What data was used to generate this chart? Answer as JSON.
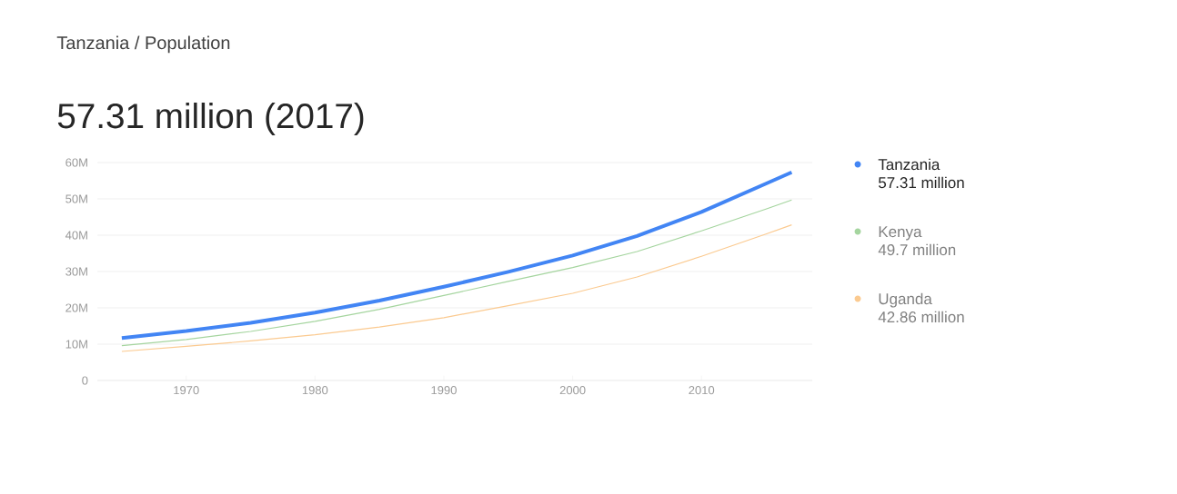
{
  "chart_data": {
    "type": "line",
    "title": "Tanzania / Population",
    "subtitle": "57.31 million (2017)",
    "x": [
      1965,
      1970,
      1975,
      1980,
      1985,
      1990,
      1995,
      2000,
      2005,
      2010,
      2015,
      2017
    ],
    "series": [
      {
        "name": "Tanzania",
        "color": "#4285f4",
        "values": [
          11.7,
          13.6,
          15.9,
          18.7,
          22.0,
          25.8,
          29.9,
          34.4,
          39.8,
          46.4,
          54.2,
          57.31
        ]
      },
      {
        "name": "Kenya",
        "color": "#a5d59f",
        "values": [
          9.6,
          11.3,
          13.5,
          16.3,
          19.6,
          23.4,
          27.3,
          31.1,
          35.5,
          41.2,
          47.2,
          49.7
        ]
      },
      {
        "name": "Uganda",
        "color": "#fbca90",
        "values": [
          8.0,
          9.4,
          10.9,
          12.6,
          14.7,
          17.3,
          20.6,
          24.0,
          28.5,
          34.2,
          40.3,
          42.86
        ]
      }
    ],
    "xlim": [
      1963.1,
      2018.6
    ],
    "ylim": [
      0,
      60
    ],
    "xticks": [
      1970,
      1980,
      1990,
      2000,
      2010
    ],
    "yticks": [
      0,
      {
        "value": 10,
        "label": "10M"
      },
      {
        "value": 20,
        "label": "20M"
      },
      {
        "value": 30,
        "label": "30M"
      },
      {
        "value": 40,
        "label": "40M"
      },
      {
        "value": 50,
        "label": "50M"
      },
      {
        "value": 60,
        "label": "60M"
      }
    ],
    "annotations": [
      "57.31 million",
      "49.7 million",
      "42.86 million"
    ],
    "grid": "y",
    "legend": "right",
    "marker": "none",
    "line_style": "solid"
  }
}
